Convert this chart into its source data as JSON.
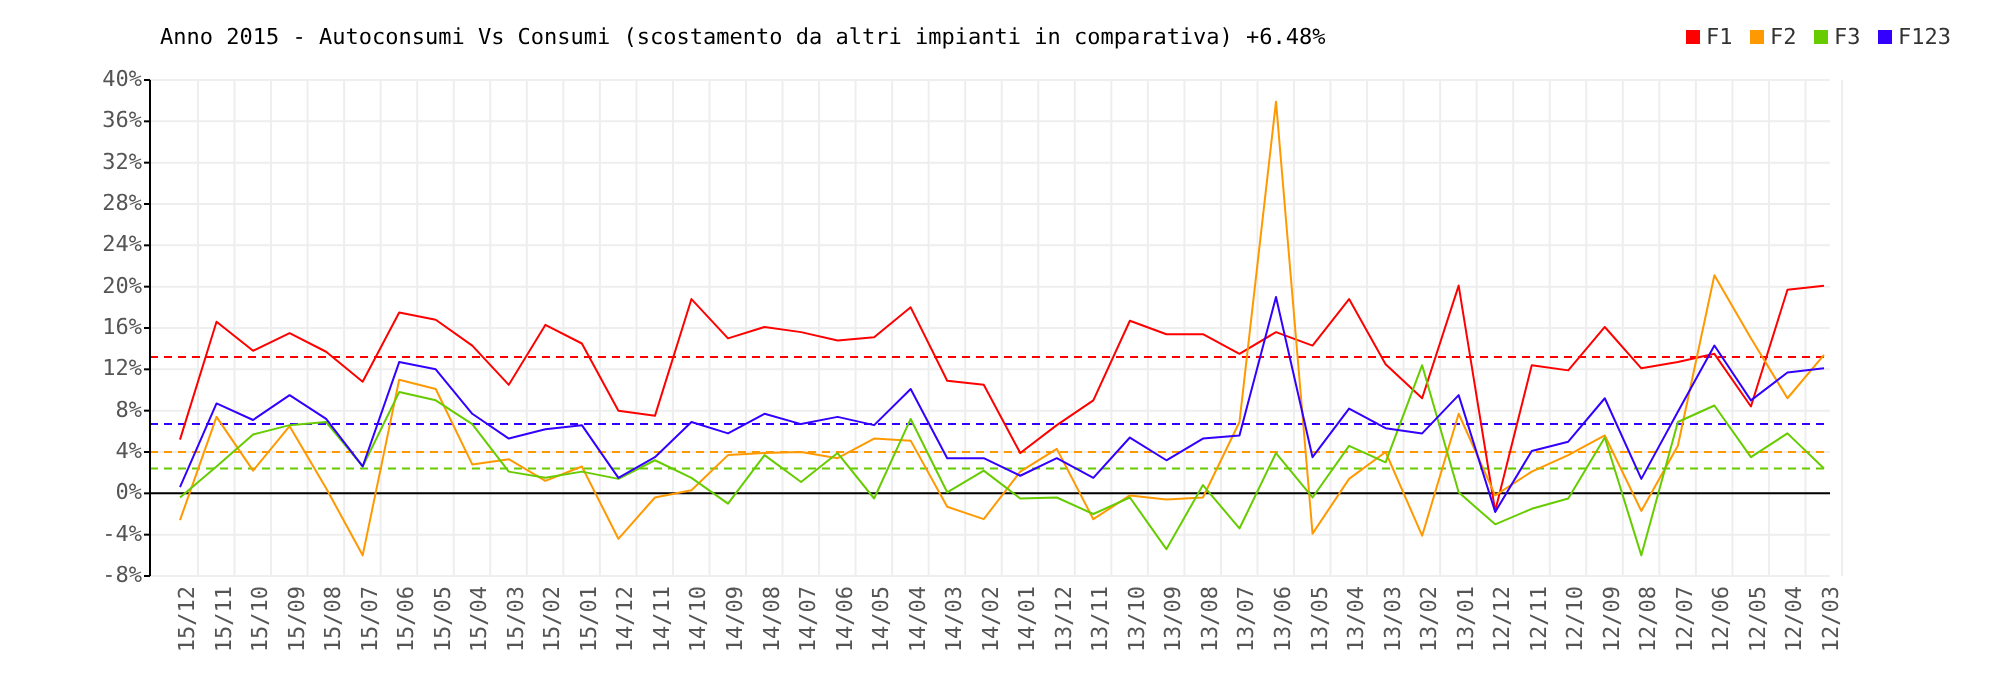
{
  "chart_data": {
    "type": "line",
    "title": "Anno 2015 - Autoconsumi Vs Consumi (scostamento da altri impianti in comparativa) +6.48%",
    "categories": [
      "15/12",
      "15/11",
      "15/10",
      "15/09",
      "15/08",
      "15/07",
      "15/06",
      "15/05",
      "15/04",
      "15/03",
      "15/02",
      "15/01",
      "14/12",
      "14/11",
      "14/10",
      "14/09",
      "14/08",
      "14/07",
      "14/06",
      "14/05",
      "14/04",
      "14/03",
      "14/02",
      "14/01",
      "13/12",
      "13/11",
      "13/10",
      "13/09",
      "13/08",
      "13/07",
      "13/06",
      "13/05",
      "13/04",
      "13/03",
      "13/02",
      "13/01",
      "12/12",
      "12/11",
      "12/10",
      "12/09",
      "12/08",
      "12/07",
      "12/06",
      "12/05",
      "12/04",
      "12/03"
    ],
    "series": [
      {
        "name": "F1",
        "color": "#ff0000",
        "values": [
          5.2,
          16.6,
          13.8,
          15.5,
          13.7,
          10.8,
          17.5,
          16.8,
          14.3,
          10.5,
          16.3,
          14.5,
          8.0,
          7.5,
          18.8,
          15.0,
          16.1,
          15.6,
          14.8,
          15.1,
          18.0,
          10.9,
          10.5,
          3.9,
          6.6,
          9.0,
          16.7,
          15.4,
          15.4,
          13.5,
          15.6,
          14.3,
          18.8,
          12.5,
          9.2,
          20.1,
          -1.7,
          12.4,
          11.9,
          16.1,
          12.1,
          12.7,
          13.5,
          8.4,
          19.7,
          20.1
        ]
      },
      {
        "name": "F2",
        "color": "#ff9900",
        "values": [
          -2.6,
          7.4,
          2.2,
          6.5,
          0.5,
          -6.0,
          11.0,
          10.1,
          2.8,
          3.3,
          1.2,
          2.6,
          -4.4,
          -0.4,
          0.3,
          3.7,
          3.9,
          4.0,
          3.4,
          5.3,
          5.1,
          -1.3,
          -2.5,
          2.1,
          4.3,
          -2.5,
          -0.2,
          -0.6,
          -0.4,
          6.9,
          37.9,
          -3.9,
          1.4,
          4.0,
          -4.1,
          7.7,
          -0.2,
          2.1,
          3.7,
          5.6,
          -1.7,
          4.6,
          21.1,
          15.0,
          9.2,
          13.4
        ]
      },
      {
        "name": "F3",
        "color": "#66cc00",
        "values": [
          -0.4,
          2.6,
          5.7,
          6.6,
          6.9,
          2.6,
          9.8,
          9.0,
          6.7,
          2.1,
          1.5,
          2.1,
          1.4,
          3.2,
          1.5,
          -1.0,
          3.7,
          1.1,
          3.9,
          -0.5,
          7.2,
          0.1,
          2.2,
          -0.5,
          -0.4,
          -2.0,
          -0.4,
          -5.4,
          0.8,
          -3.4,
          3.9,
          -0.4,
          4.6,
          3.0,
          12.4,
          0.1,
          -3.0,
          -1.5,
          -0.5,
          5.4,
          -6.0,
          6.9,
          8.5,
          3.5,
          5.8,
          2.4
        ]
      },
      {
        "name": "F123",
        "color": "#3300ff",
        "values": [
          0.6,
          8.7,
          7.1,
          9.5,
          7.2,
          2.6,
          12.7,
          12.0,
          7.7,
          5.3,
          6.2,
          6.6,
          1.5,
          3.5,
          6.9,
          5.8,
          7.7,
          6.7,
          7.4,
          6.6,
          10.1,
          3.4,
          3.4,
          1.7,
          3.4,
          1.5,
          5.4,
          3.2,
          5.3,
          5.6,
          19.0,
          3.5,
          8.2,
          6.3,
          5.8,
          9.5,
          -1.8,
          4.1,
          5.0,
          9.2,
          1.4,
          7.9,
          14.3,
          9.0,
          11.7,
          12.1
        ]
      }
    ],
    "ylim": [
      -8,
      40
    ],
    "yticks": [
      {
        "value": -8,
        "label": "-8%"
      },
      {
        "value": -4,
        "label": "-4%"
      },
      {
        "value": 0,
        "label": "0%"
      },
      {
        "value": 4,
        "label": "4%"
      },
      {
        "value": 8,
        "label": "8%"
      },
      {
        "value": 12,
        "label": "12%"
      },
      {
        "value": 16,
        "label": "16%"
      },
      {
        "value": 20,
        "label": "20%"
      },
      {
        "value": 24,
        "label": "24%"
      },
      {
        "value": 28,
        "label": "28%"
      },
      {
        "value": 32,
        "label": "32%"
      },
      {
        "value": 36,
        "label": "36%"
      },
      {
        "value": 40,
        "label": "40%"
      }
    ],
    "ref_lines": [
      {
        "axis": "y",
        "value": 0,
        "color": "#000000",
        "line_style": "solid"
      },
      {
        "axis": "y",
        "value": 13.2,
        "color": "#ff0000",
        "line_style": "dashed"
      },
      {
        "axis": "y",
        "value": 6.7,
        "color": "#3300ff",
        "line_style": "dashed"
      },
      {
        "axis": "y",
        "value": 4.0,
        "color": "#ff9900",
        "line_style": "dashed"
      },
      {
        "axis": "y",
        "value": 2.4,
        "color": "#66cc00",
        "line_style": "dashed"
      }
    ],
    "grid": true,
    "legend": "top right",
    "marker": "none",
    "line_style": "solid"
  }
}
